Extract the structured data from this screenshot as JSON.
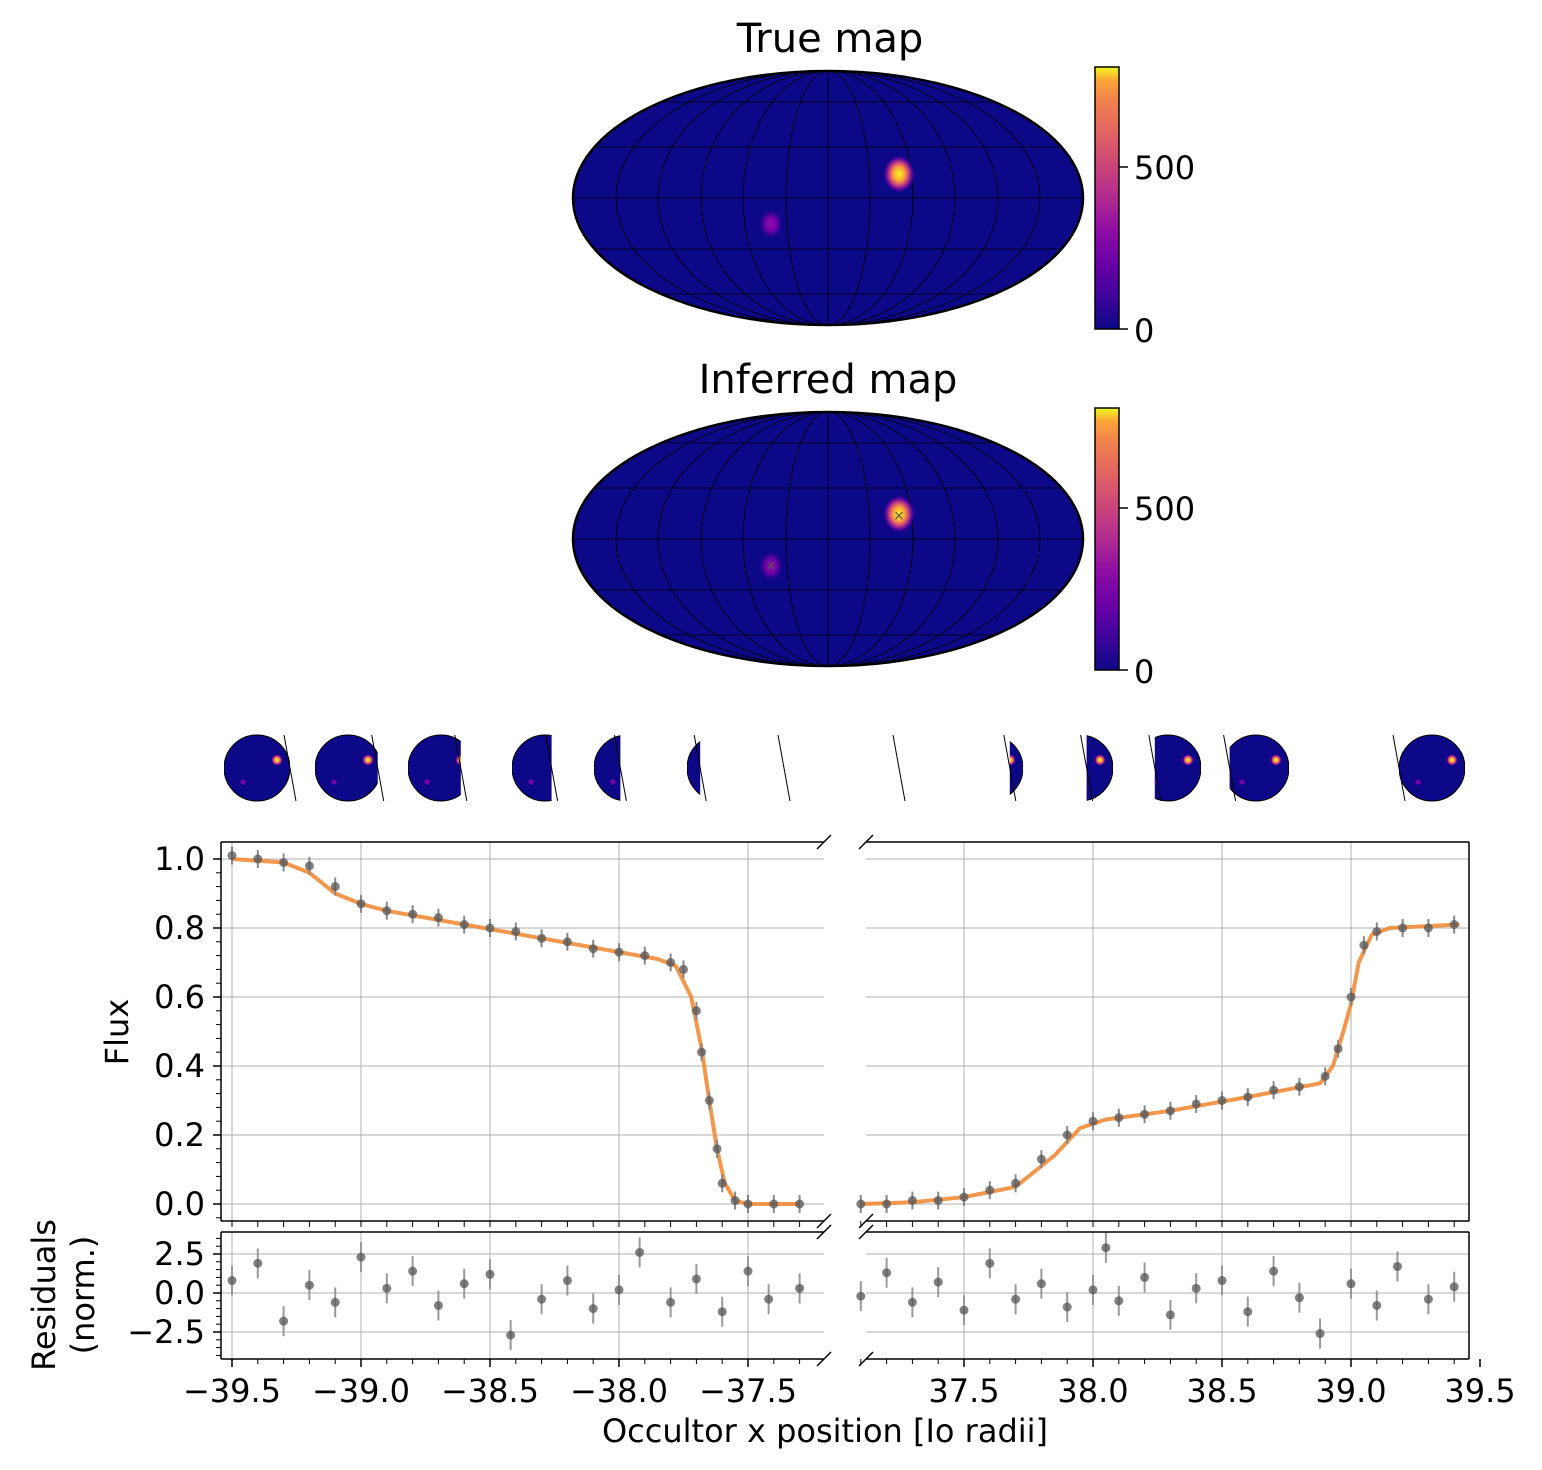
{
  "chart_data": [
    {
      "type": "heatmap",
      "projection": "mollweide",
      "title": "True map",
      "colormap": "plasma",
      "colorbar": {
        "ticks": [
          0,
          500
        ],
        "range": [
          0,
          780
        ]
      },
      "spots": [
        {
          "lon_deg": 30,
          "lat_deg": 18,
          "peak": 780
        },
        {
          "lon_deg": -25,
          "lat_deg": -20,
          "peak": 280
        }
      ],
      "graticule": true
    },
    {
      "type": "heatmap",
      "projection": "mollweide",
      "title": "Inferred map",
      "colormap": "plasma",
      "colorbar": {
        "ticks": [
          0,
          500
        ],
        "range": [
          0,
          780
        ]
      },
      "spots": [
        {
          "lon_deg": 30,
          "lat_deg": 18,
          "peak": 760
        },
        {
          "lon_deg": -25,
          "lat_deg": -20,
          "peak": 270
        }
      ],
      "markers": [
        {
          "lon_deg": 30,
          "lat_deg": 18
        },
        {
          "lon_deg": -25,
          "lat_deg": -20
        }
      ],
      "graticule": true
    },
    {
      "type": "scatter",
      "panel": "flux",
      "ylabel": "Flux",
      "broken_x_axis": [
        [
          -39.55,
          -37.2
        ],
        [
          37.05,
          39.55
        ]
      ],
      "ylim": [
        -0.05,
        1.05
      ],
      "yticks": [
        "0.0",
        "0.2",
        "0.4",
        "0.6",
        "0.8",
        "1.0"
      ],
      "grid": true,
      "series": [
        {
          "style": "black points with error bars",
          "segment": "ingress",
          "x": [
            -39.5,
            -39.4,
            -39.3,
            -39.2,
            -39.1,
            -39.0,
            -38.9,
            -38.8,
            -38.7,
            -38.6,
            -38.5,
            -38.4,
            -38.3,
            -38.2,
            -38.1,
            -38.0,
            -37.9,
            -37.8,
            -37.75,
            -37.7,
            -37.68,
            -37.65,
            -37.62,
            -37.6,
            -37.55,
            -37.5,
            -37.4,
            -37.3
          ],
          "y": [
            1.01,
            1.0,
            0.99,
            0.98,
            0.92,
            0.87,
            0.85,
            0.84,
            0.83,
            0.81,
            0.8,
            0.79,
            0.77,
            0.76,
            0.74,
            0.73,
            0.72,
            0.7,
            0.68,
            0.56,
            0.44,
            0.3,
            0.16,
            0.06,
            0.01,
            0.0,
            0.0,
            0.0
          ]
        },
        {
          "style": "black points with error bars",
          "segment": "egress",
          "x": [
            37.1,
            37.2,
            37.3,
            37.4,
            37.5,
            37.6,
            37.7,
            37.8,
            37.9,
            38.0,
            38.1,
            38.2,
            38.3,
            38.4,
            38.5,
            38.6,
            38.7,
            38.8,
            38.9,
            38.95,
            39.0,
            39.05,
            39.1,
            39.2,
            39.3,
            39.4
          ],
          "y": [
            0.0,
            0.0,
            0.01,
            0.01,
            0.02,
            0.04,
            0.06,
            0.13,
            0.2,
            0.24,
            0.25,
            0.26,
            0.27,
            0.29,
            0.3,
            0.31,
            0.33,
            0.34,
            0.37,
            0.45,
            0.6,
            0.75,
            0.79,
            0.8,
            0.8,
            0.81
          ]
        },
        {
          "style": "orange model curve",
          "segment": "ingress",
          "x": [
            -39.5,
            -39.3,
            -39.2,
            -39.1,
            -39.0,
            -38.9,
            -38.6,
            -38.3,
            -38.0,
            -37.85,
            -37.78,
            -37.72,
            -37.68,
            -37.65,
            -37.62,
            -37.59,
            -37.55,
            -37.5,
            -37.3
          ],
          "y": [
            1.0,
            0.99,
            0.96,
            0.9,
            0.87,
            0.85,
            0.81,
            0.77,
            0.73,
            0.71,
            0.69,
            0.6,
            0.45,
            0.3,
            0.16,
            0.06,
            0.01,
            0.0,
            0.0
          ]
        },
        {
          "style": "orange model curve",
          "segment": "egress",
          "x": [
            37.1,
            37.3,
            37.5,
            37.7,
            37.85,
            37.95,
            38.05,
            38.3,
            38.6,
            38.88,
            38.93,
            38.97,
            39.0,
            39.03,
            39.08,
            39.15,
            39.42
          ],
          "y": [
            0.0,
            0.005,
            0.02,
            0.05,
            0.14,
            0.22,
            0.245,
            0.27,
            0.31,
            0.35,
            0.4,
            0.5,
            0.58,
            0.7,
            0.78,
            0.8,
            0.81
          ]
        }
      ]
    },
    {
      "type": "scatter",
      "panel": "residuals",
      "ylabel": "Residuals\n(norm.)",
      "xlabel": "Occultor x position [Io radii]",
      "ylim": [
        -4.2,
        4.2
      ],
      "yticks": [
        "−2.5",
        "0.0",
        "2.5"
      ],
      "xticks_left": [
        "−39.5",
        "−39.0",
        "−38.5",
        "−38.0",
        "−37.5"
      ],
      "xticks_right": [
        "37.5",
        "38.0",
        "38.5",
        "39.0",
        "39.5"
      ],
      "grid": true,
      "series": [
        {
          "style": "black points with error bars",
          "segment": "ingress",
          "x": [
            -39.5,
            -39.4,
            -39.3,
            -39.2,
            -39.1,
            -39.0,
            -38.9,
            -38.8,
            -38.7,
            -38.6,
            -38.5,
            -38.42,
            -38.3,
            -38.2,
            -38.1,
            -38.0,
            -37.92,
            -37.8,
            -37.7,
            -37.6,
            -37.5,
            -37.42,
            -37.3
          ],
          "y": [
            0.8,
            1.9,
            -1.8,
            0.5,
            -0.6,
            2.3,
            0.3,
            1.4,
            -0.8,
            0.6,
            1.2,
            -2.7,
            -0.4,
            0.8,
            -1.0,
            0.2,
            2.6,
            -0.6,
            0.9,
            -1.2,
            1.4,
            -0.4,
            0.3
          ]
        },
        {
          "style": "black points with error bars",
          "segment": "egress",
          "x": [
            37.1,
            37.2,
            37.3,
            37.4,
            37.5,
            37.6,
            37.7,
            37.8,
            37.9,
            38.0,
            38.05,
            38.1,
            38.2,
            38.3,
            38.4,
            38.5,
            38.6,
            38.7,
            38.8,
            38.88,
            39.0,
            39.1,
            39.18,
            39.3,
            39.4
          ],
          "y": [
            -0.2,
            1.3,
            -0.6,
            0.7,
            -1.1,
            1.9,
            -0.4,
            0.6,
            -0.9,
            0.2,
            2.9,
            -0.5,
            1.0,
            -1.4,
            0.3,
            0.8,
            -1.2,
            1.4,
            -0.3,
            -2.6,
            0.6,
            -0.8,
            1.7,
            -0.4,
            0.4
          ]
        }
      ]
    },
    {
      "type": "other",
      "description_kind": "phase thumbnails",
      "count": 13,
      "visible_fraction": [
        1.0,
        0.95,
        0.8,
        0.6,
        0.4,
        0.2,
        0.0,
        0.0,
        0.2,
        0.4,
        0.7,
        0.9,
        1.0
      ]
    }
  ]
}
